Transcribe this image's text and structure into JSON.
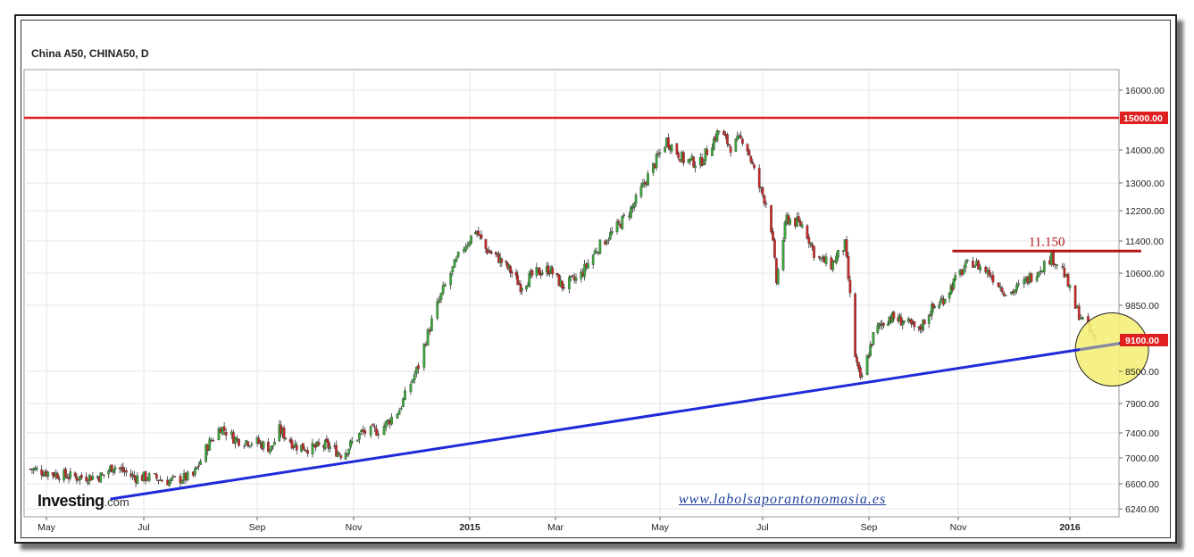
{
  "chart_data": {
    "type": "candlestick",
    "title": "China A50, CHINA50, D",
    "x_ticks": [
      "May",
      "Jul",
      "Sep",
      "Nov",
      "2015",
      "Mar",
      "May",
      "Jul",
      "Sep",
      "Nov",
      "2016"
    ],
    "y_ticks": [
      "16000.00",
      "14000.00",
      "13000.00",
      "12200.00",
      "11400.00",
      "10600.00",
      "9850.00",
      "8500.00",
      "7900.00",
      "7400.00",
      "7000.00",
      "6600.00",
      "6240.00"
    ],
    "ylim": [
      6000,
      16600
    ],
    "grid": true,
    "y_axis_side": "right",
    "close_path": [
      [
        "2014-04-21",
        6830
      ],
      [
        "2014-05-05",
        6760
      ],
      [
        "2014-05-20",
        6700
      ],
      [
        "2014-06-05",
        6720
      ],
      [
        "2014-06-12",
        6880
      ],
      [
        "2014-06-25",
        6700
      ],
      [
        "2014-07-05",
        6700
      ],
      [
        "2014-07-15",
        6640
      ],
      [
        "2014-07-28",
        6720
      ],
      [
        "2014-08-05",
        7200
      ],
      [
        "2014-08-12",
        7500
      ],
      [
        "2014-08-20",
        7300
      ],
      [
        "2014-09-01",
        7250
      ],
      [
        "2014-09-10",
        7150
      ],
      [
        "2014-09-15",
        7450
      ],
      [
        "2014-09-25",
        7200
      ],
      [
        "2014-10-05",
        7150
      ],
      [
        "2014-10-15",
        7200
      ],
      [
        "2014-10-25",
        7050
      ],
      [
        "2014-11-05",
        7400
      ],
      [
        "2014-11-15",
        7450
      ],
      [
        "2014-11-25",
        7800
      ],
      [
        "2014-12-05",
        8600
      ],
      [
        "2014-12-12",
        9500
      ],
      [
        "2014-12-18",
        10200
      ],
      [
        "2014-12-28",
        11200
      ],
      [
        "2015-01-05",
        11700
      ],
      [
        "2015-01-12",
        11200
      ],
      [
        "2015-01-20",
        11000
      ],
      [
        "2015-01-28",
        10700
      ],
      [
        "2015-02-05",
        10300
      ],
      [
        "2015-02-15",
        10600
      ],
      [
        "2015-02-25",
        10700
      ],
      [
        "2015-03-05",
        10300
      ],
      [
        "2015-03-15",
        10500
      ],
      [
        "2015-03-25",
        11200
      ],
      [
        "2015-04-05",
        11700
      ],
      [
        "2015-04-15",
        12300
      ],
      [
        "2015-04-25",
        13300
      ],
      [
        "2015-05-05",
        14300
      ],
      [
        "2015-05-15",
        13700
      ],
      [
        "2015-05-25",
        13600
      ],
      [
        "2015-06-05",
        14600
      ],
      [
        "2015-06-12",
        14100
      ],
      [
        "2015-06-20",
        14400
      ],
      [
        "2015-06-28",
        13000
      ],
      [
        "2015-07-05",
        12200
      ],
      [
        "2015-07-09",
        10400
      ],
      [
        "2015-07-15",
        12000
      ],
      [
        "2015-07-25",
        11800
      ],
      [
        "2015-08-01",
        11000
      ],
      [
        "2015-08-10",
        10800
      ],
      [
        "2015-08-18",
        11300
      ],
      [
        "2015-08-24",
        8800
      ],
      [
        "2015-08-27",
        8300
      ],
      [
        "2015-09-05",
        9300
      ],
      [
        "2015-09-15",
        9600
      ],
      [
        "2015-09-25",
        9500
      ],
      [
        "2015-10-05",
        9300
      ],
      [
        "2015-10-12",
        9700
      ],
      [
        "2015-10-22",
        10000
      ],
      [
        "2015-11-02",
        10600
      ],
      [
        "2015-11-08",
        10900
      ],
      [
        "2015-11-18",
        10600
      ],
      [
        "2015-11-28",
        10100
      ],
      [
        "2015-12-05",
        10300
      ],
      [
        "2015-12-15",
        10700
      ],
      [
        "2015-12-22",
        11000
      ],
      [
        "2015-12-28",
        10700
      ],
      [
        "2016-01-04",
        9800
      ],
      [
        "2016-01-10",
        9400
      ],
      [
        "2016-01-15",
        9100
      ]
    ],
    "horizontal_lines": [
      {
        "value": 15000,
        "label": "15000.00",
        "color": "#e02020"
      },
      {
        "value": 11150,
        "label": "11.150",
        "color": "#b01818",
        "from": "2015-10-28",
        "to": "2016-02-09"
      }
    ],
    "trendline": {
      "from": [
        "2014-06-10",
        6380
      ],
      "to": [
        "2016-02-09",
        9100
      ],
      "color": "#1f2ad8"
    },
    "last_value_label": {
      "value": 9100,
      "label": "9100.00",
      "color": "#e02020"
    },
    "highlight_circle": {
      "center": [
        "2016-01-24",
        8920
      ],
      "color": "#f4f07a"
    },
    "colors": {
      "up": "#3aa63a",
      "down": "#c82828",
      "grid": "#e6e6e6"
    }
  },
  "branding": {
    "logo_main": "Investing",
    "logo_suffix": ".com"
  },
  "watermark": {
    "website": "www.labolsaporantonomasia.es"
  }
}
